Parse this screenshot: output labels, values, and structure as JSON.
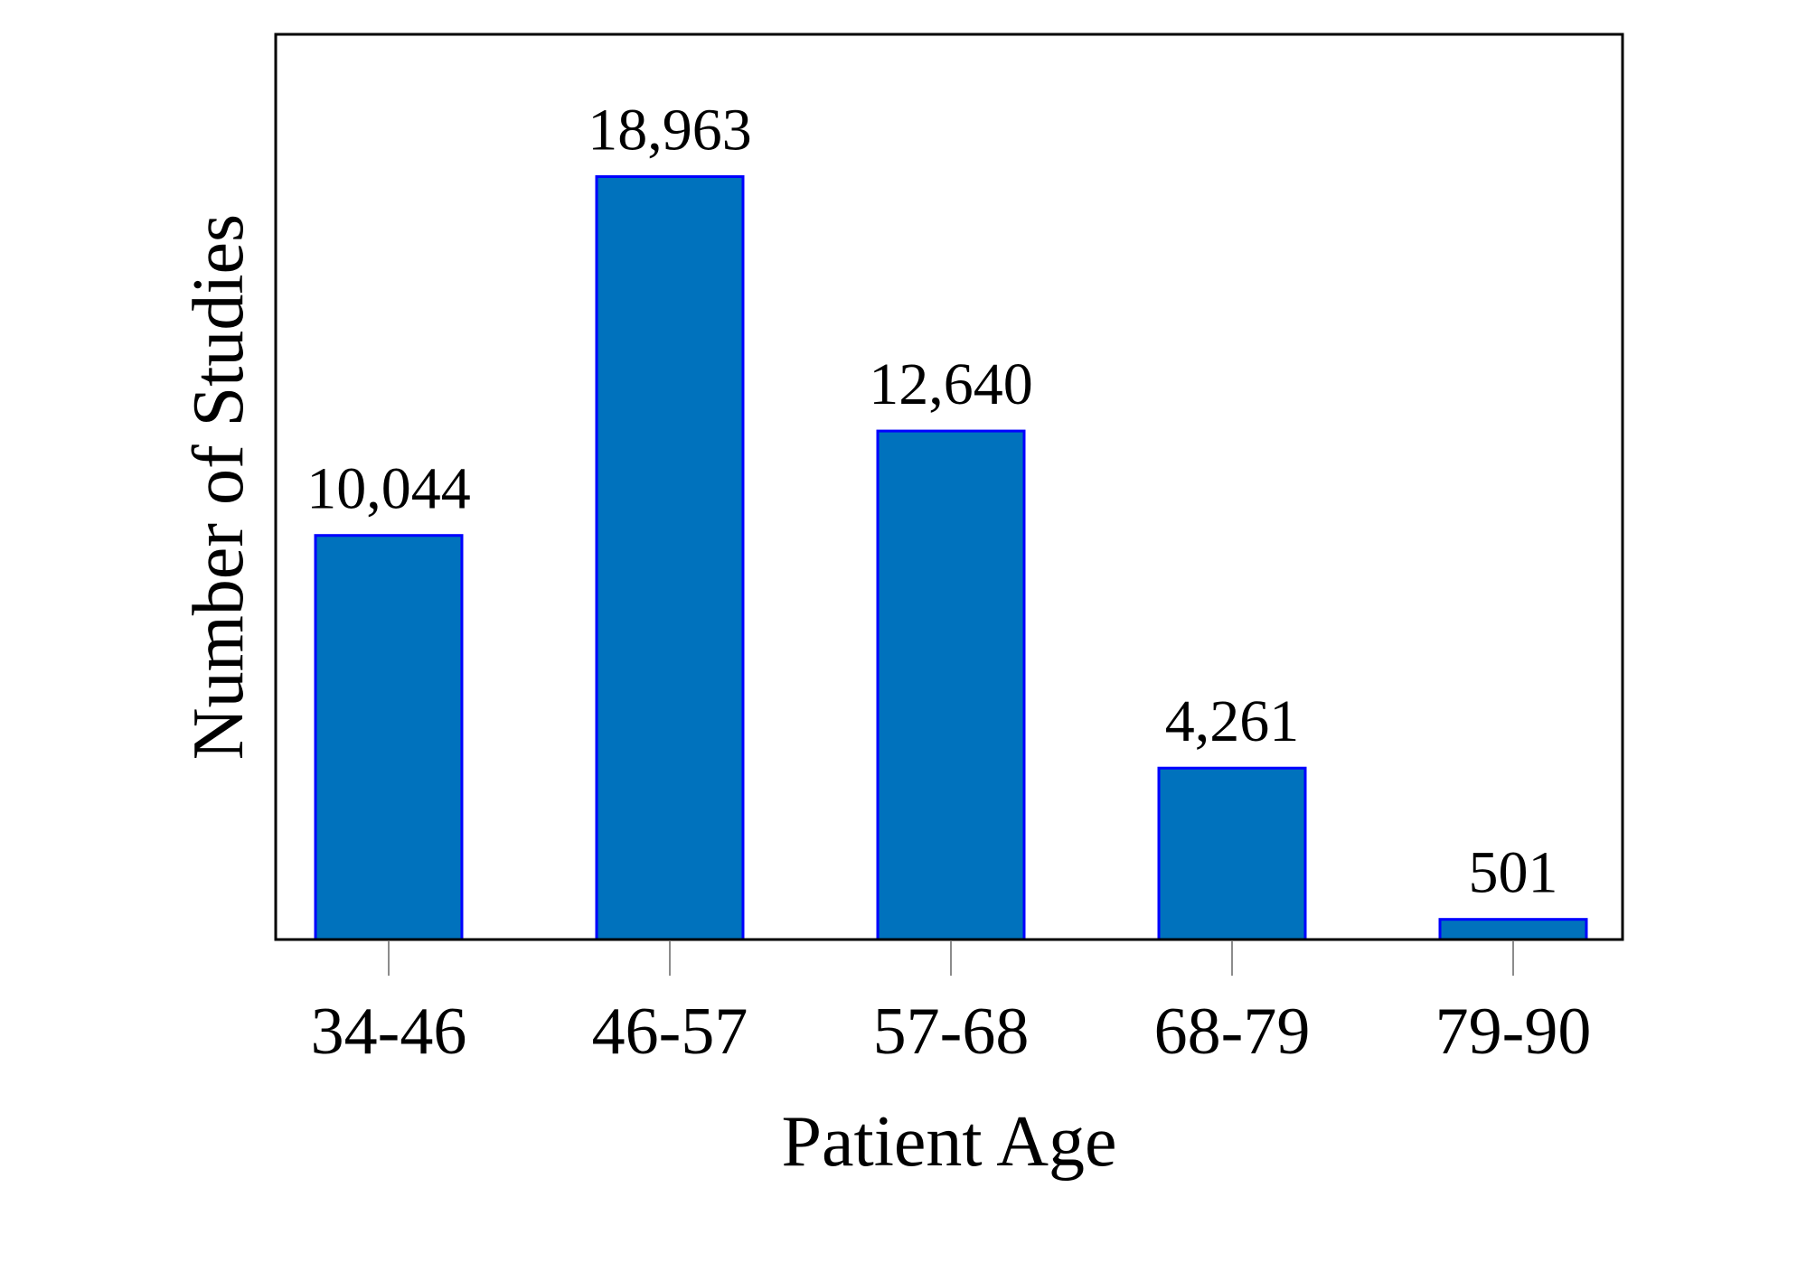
{
  "chart_data": {
    "type": "bar",
    "categories": [
      "34-46",
      "46-57",
      "57-68",
      "68-79",
      "79-90"
    ],
    "values": [
      10044,
      18963,
      12640,
      4261,
      501
    ],
    "data_labels": [
      "10,044",
      "18,963",
      "12,640",
      "4,261",
      "501"
    ],
    "xlabel": "Patient Age",
    "ylabel": "Number of Studies",
    "ylim": [
      0,
      22500
    ],
    "grid": false,
    "legend": "none",
    "bar_color": "#0072BD",
    "bar_edge_color": "#0000FF"
  }
}
